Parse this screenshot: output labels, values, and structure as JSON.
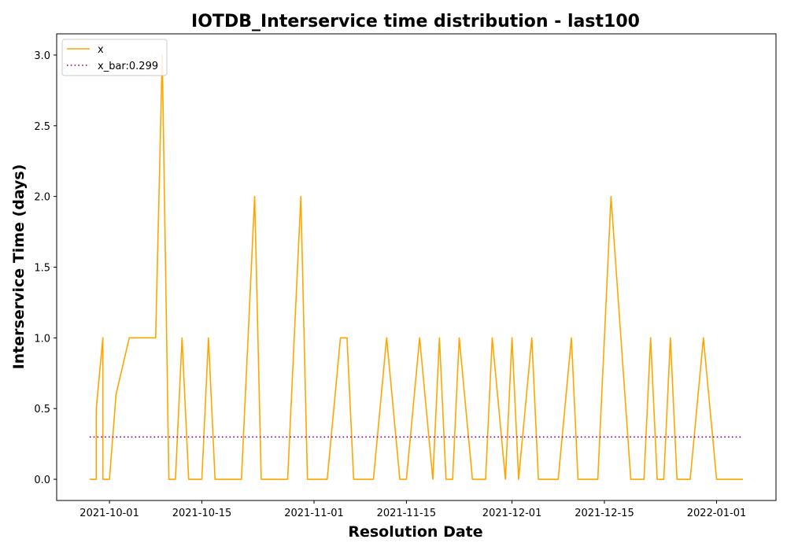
{
  "chart_data": {
    "type": "line",
    "title": "IOTDB_Interservice time distribution - last100",
    "xlabel": "Resolution Date",
    "ylabel": "Interservice Time (days)",
    "x_tick_labels": [
      "2021-10-01",
      "2021-10-15",
      "2021-11-01",
      "2021-11-15",
      "2021-12-01",
      "2021-12-15",
      "2022-01-01"
    ],
    "x_ticks": [
      "2021-10-01",
      "2021-10-15",
      "2021-11-01",
      "2021-11-15",
      "2021-12-01",
      "2021-12-15",
      "2022-01-01"
    ],
    "y_ticks": [
      0.0,
      0.5,
      1.0,
      1.5,
      2.0,
      2.5,
      3.0
    ],
    "y_tick_labels": [
      "0.0",
      "0.5",
      "1.0",
      "1.5",
      "2.0",
      "2.5",
      "3.0"
    ],
    "xlim": [
      "2021-09-23",
      "2022-01-10"
    ],
    "ylim": [
      -0.15,
      3.15
    ],
    "grid": false,
    "legend_position": "top-left",
    "series": [
      {
        "name": "x",
        "color": "#ffa500",
        "style": "solid",
        "x": [
          "2021-09-28",
          "2021-09-29",
          "2021-09-29",
          "2021-09-30",
          "2021-09-30",
          "2021-10-01",
          "2021-10-02",
          "2021-10-04",
          "2021-10-08",
          "2021-10-09",
          "2021-10-10",
          "2021-10-11",
          "2021-10-12",
          "2021-10-13",
          "2021-10-15",
          "2021-10-16",
          "2021-10-17",
          "2021-10-18",
          "2021-10-21",
          "2021-10-23",
          "2021-10-24",
          "2021-10-25",
          "2021-10-28",
          "2021-10-30",
          "2021-10-31",
          "2021-11-01",
          "2021-11-03",
          "2021-11-05",
          "2021-11-06",
          "2021-11-06",
          "2021-11-07",
          "2021-11-08",
          "2021-11-10",
          "2021-11-12",
          "2021-11-14",
          "2021-11-15",
          "2021-11-17",
          "2021-11-19",
          "2021-11-19",
          "2021-11-20",
          "2021-11-21",
          "2021-11-22",
          "2021-11-23",
          "2021-11-25",
          "2021-11-26",
          "2021-11-27",
          "2021-11-28",
          "2021-11-30",
          "2021-11-30",
          "2021-12-01",
          "2021-12-02",
          "2021-12-02",
          "2021-12-04",
          "2021-12-05",
          "2021-12-06",
          "2021-12-08",
          "2021-12-10",
          "2021-12-11",
          "2021-12-13",
          "2021-12-14",
          "2021-12-16",
          "2021-12-19",
          "2021-12-21",
          "2021-12-22",
          "2021-12-23",
          "2021-12-24",
          "2021-12-25",
          "2021-12-26",
          "2021-12-27",
          "2021-12-28",
          "2021-12-30",
          "2022-01-01",
          "2022-01-02",
          "2022-01-03",
          "2022-01-05"
        ],
        "values": [
          0,
          0,
          0.5,
          1,
          0,
          0,
          0.6,
          1,
          1,
          3,
          0,
          0,
          1,
          0,
          0,
          1,
          0,
          0,
          0,
          2,
          0,
          0,
          0,
          2,
          0,
          0,
          0,
          1,
          1,
          1,
          0,
          0,
          0,
          1,
          0,
          0,
          1,
          0,
          0,
          1,
          0,
          0,
          1,
          0,
          0,
          0,
          1,
          0,
          0,
          1,
          0,
          0,
          1,
          0,
          0,
          0,
          1,
          0,
          0,
          0,
          2,
          0,
          0,
          1,
          0,
          0,
          1,
          0,
          0,
          0,
          1,
          0,
          0,
          0,
          0
        ]
      },
      {
        "name": "x_bar:0.299",
        "color": "#800080",
        "style": "dotted",
        "x": [
          "2021-09-28",
          "2022-01-05"
        ],
        "values": [
          0.299,
          0.299
        ]
      }
    ]
  }
}
